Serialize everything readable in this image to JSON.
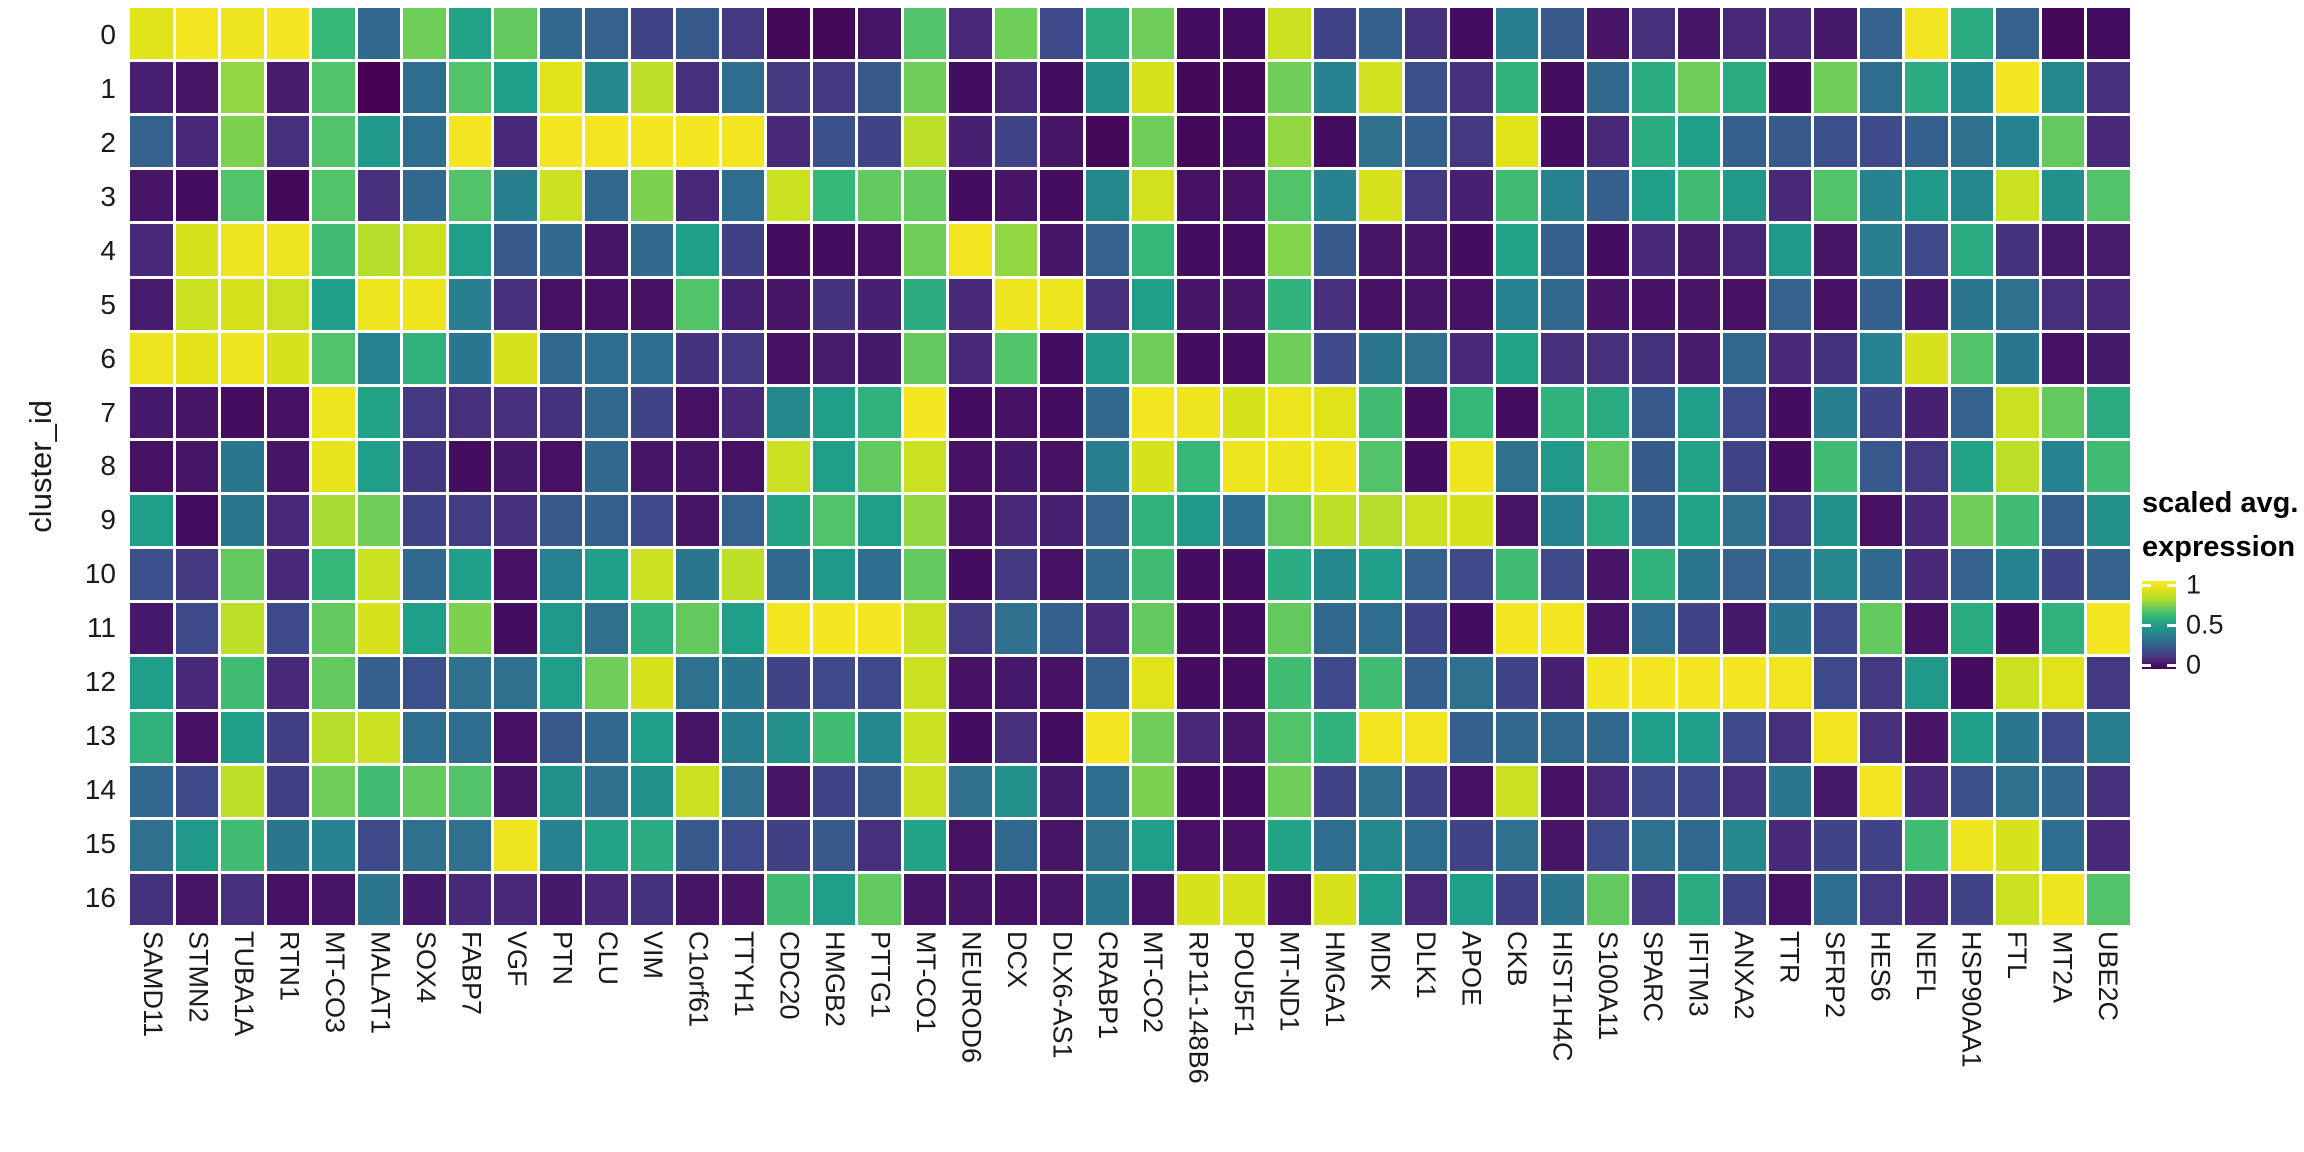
{
  "figure": {
    "background": "#ffffff",
    "grid_gap_color": "#ffffff"
  },
  "chart_data": {
    "type": "heatmap",
    "title": "",
    "xlabel": "",
    "ylabel": "cluster_id",
    "value_range": [
      0,
      1
    ],
    "colormap": "viridis",
    "viridis_stops": [
      "#440154",
      "#482878",
      "#3e4a89",
      "#31688e",
      "#26828e",
      "#1f9e89",
      "#35b779",
      "#6ece58",
      "#b5de2b",
      "#dfe318",
      "#fde725"
    ],
    "legend": {
      "title_line1": "scaled avg.",
      "title_line2": "expression",
      "tick_labels": [
        "1",
        "0.5",
        "0"
      ],
      "tick_values": [
        1,
        0.5,
        0
      ],
      "position": "right"
    },
    "rows": [
      "0",
      "1",
      "2",
      "3",
      "4",
      "5",
      "6",
      "7",
      "8",
      "9",
      "10",
      "11",
      "12",
      "13",
      "14",
      "15",
      "16"
    ],
    "columns": [
      "SAMD11",
      "STMN2",
      "TUBA1A",
      "RTN1",
      "MT-CO3",
      "MALAT1",
      "SOX4",
      "FABP7",
      "VGF",
      "PTN",
      "CLU",
      "VIM",
      "C1orf61",
      "TTYH1",
      "CDC20",
      "HMGB2",
      "PTTG1",
      "MT-CO1",
      "NEUROD6",
      "DCX",
      "DLX6-AS1",
      "CRABP1",
      "MT-CO2",
      "RP11-148B6",
      "POU5F1",
      "MT-ND1",
      "HMGA1",
      "MDK",
      "DLK1",
      "APOE",
      "CKB",
      "HIST1H4C",
      "S100A11",
      "SPARC",
      "IFITM3",
      "ANXA2",
      "TTR",
      "SFRP2",
      "HES6",
      "NEFL",
      "HSP90AA1",
      "FTL",
      "MT2A",
      "UBE2C"
    ],
    "values": [
      [
        0.9,
        0.97,
        0.95,
        0.97,
        0.6,
        0.3,
        0.7,
        0.52,
        0.68,
        0.3,
        0.28,
        0.18,
        0.25,
        0.15,
        0.02,
        0.02,
        0.05,
        0.65,
        0.1,
        0.7,
        0.2,
        0.55,
        0.7,
        0.03,
        0.03,
        0.85,
        0.18,
        0.27,
        0.13,
        0.03,
        0.38,
        0.25,
        0.05,
        0.12,
        0.05,
        0.1,
        0.1,
        0.06,
        0.28,
        0.97,
        0.55,
        0.28,
        0.02,
        0.03
      ],
      [
        0.08,
        0.05,
        0.75,
        0.07,
        0.65,
        0.0,
        0.32,
        0.65,
        0.5,
        0.9,
        0.42,
        0.82,
        0.12,
        0.32,
        0.15,
        0.15,
        0.25,
        0.7,
        0.03,
        0.1,
        0.03,
        0.45,
        0.88,
        0.02,
        0.02,
        0.7,
        0.4,
        0.87,
        0.22,
        0.12,
        0.58,
        0.03,
        0.3,
        0.55,
        0.7,
        0.55,
        0.03,
        0.7,
        0.32,
        0.55,
        0.42,
        0.97,
        0.42,
        0.12
      ],
      [
        0.28,
        0.1,
        0.72,
        0.12,
        0.65,
        0.48,
        0.32,
        0.97,
        0.1,
        0.97,
        0.97,
        0.97,
        0.97,
        0.96,
        0.1,
        0.22,
        0.18,
        0.82,
        0.08,
        0.18,
        0.05,
        0.02,
        0.7,
        0.02,
        0.03,
        0.75,
        0.03,
        0.33,
        0.27,
        0.15,
        0.9,
        0.03,
        0.1,
        0.55,
        0.5,
        0.27,
        0.25,
        0.22,
        0.2,
        0.27,
        0.33,
        0.4,
        0.68,
        0.1
      ],
      [
        0.05,
        0.03,
        0.65,
        0.02,
        0.65,
        0.12,
        0.3,
        0.65,
        0.38,
        0.85,
        0.3,
        0.72,
        0.1,
        0.32,
        0.85,
        0.6,
        0.68,
        0.68,
        0.03,
        0.05,
        0.03,
        0.42,
        0.87,
        0.04,
        0.04,
        0.65,
        0.4,
        0.88,
        0.15,
        0.08,
        0.62,
        0.4,
        0.27,
        0.5,
        0.62,
        0.48,
        0.1,
        0.65,
        0.4,
        0.48,
        0.42,
        0.85,
        0.45,
        0.65
      ],
      [
        0.1,
        0.88,
        0.95,
        0.95,
        0.62,
        0.8,
        0.85,
        0.5,
        0.25,
        0.3,
        0.05,
        0.3,
        0.5,
        0.17,
        0.03,
        0.03,
        0.04,
        0.7,
        0.96,
        0.75,
        0.05,
        0.28,
        0.6,
        0.03,
        0.03,
        0.73,
        0.25,
        0.05,
        0.05,
        0.03,
        0.52,
        0.27,
        0.03,
        0.1,
        0.07,
        0.09,
        0.48,
        0.05,
        0.38,
        0.2,
        0.55,
        0.13,
        0.06,
        0.07
      ],
      [
        0.07,
        0.85,
        0.88,
        0.85,
        0.5,
        0.95,
        0.95,
        0.38,
        0.12,
        0.04,
        0.04,
        0.04,
        0.65,
        0.08,
        0.05,
        0.13,
        0.08,
        0.55,
        0.1,
        0.95,
        0.95,
        0.12,
        0.5,
        0.05,
        0.05,
        0.58,
        0.12,
        0.04,
        0.05,
        0.04,
        0.4,
        0.3,
        0.05,
        0.04,
        0.05,
        0.04,
        0.28,
        0.04,
        0.27,
        0.06,
        0.35,
        0.33,
        0.12,
        0.1
      ],
      [
        0.95,
        0.92,
        0.95,
        0.88,
        0.65,
        0.4,
        0.58,
        0.35,
        0.88,
        0.3,
        0.32,
        0.32,
        0.13,
        0.15,
        0.04,
        0.07,
        0.06,
        0.68,
        0.1,
        0.65,
        0.03,
        0.48,
        0.7,
        0.03,
        0.03,
        0.7,
        0.2,
        0.35,
        0.33,
        0.1,
        0.52,
        0.12,
        0.12,
        0.13,
        0.07,
        0.3,
        0.1,
        0.13,
        0.4,
        0.88,
        0.65,
        0.35,
        0.04,
        0.06
      ],
      [
        0.06,
        0.05,
        0.03,
        0.04,
        0.95,
        0.52,
        0.15,
        0.12,
        0.12,
        0.13,
        0.3,
        0.18,
        0.04,
        0.1,
        0.42,
        0.5,
        0.58,
        0.97,
        0.03,
        0.04,
        0.03,
        0.3,
        0.97,
        0.95,
        0.88,
        0.95,
        0.9,
        0.62,
        0.03,
        0.6,
        0.03,
        0.58,
        0.55,
        0.25,
        0.5,
        0.2,
        0.03,
        0.38,
        0.18,
        0.08,
        0.28,
        0.85,
        0.68,
        0.55
      ],
      [
        0.04,
        0.05,
        0.35,
        0.05,
        0.93,
        0.5,
        0.14,
        0.03,
        0.06,
        0.04,
        0.3,
        0.05,
        0.05,
        0.04,
        0.85,
        0.5,
        0.68,
        0.85,
        0.04,
        0.06,
        0.04,
        0.38,
        0.88,
        0.6,
        0.95,
        0.95,
        0.95,
        0.65,
        0.03,
        0.95,
        0.33,
        0.48,
        0.68,
        0.26,
        0.52,
        0.18,
        0.03,
        0.62,
        0.25,
        0.15,
        0.52,
        0.82,
        0.4,
        0.62
      ],
      [
        0.5,
        0.03,
        0.35,
        0.1,
        0.78,
        0.7,
        0.18,
        0.16,
        0.12,
        0.25,
        0.27,
        0.2,
        0.05,
        0.28,
        0.52,
        0.65,
        0.5,
        0.75,
        0.04,
        0.1,
        0.08,
        0.28,
        0.58,
        0.48,
        0.32,
        0.68,
        0.82,
        0.8,
        0.85,
        0.88,
        0.05,
        0.4,
        0.55,
        0.27,
        0.52,
        0.33,
        0.15,
        0.45,
        0.04,
        0.1,
        0.7,
        0.62,
        0.27,
        0.45
      ],
      [
        0.22,
        0.15,
        0.68,
        0.1,
        0.6,
        0.85,
        0.3,
        0.5,
        0.04,
        0.4,
        0.5,
        0.85,
        0.35,
        0.82,
        0.3,
        0.48,
        0.32,
        0.68,
        0.03,
        0.15,
        0.04,
        0.3,
        0.62,
        0.03,
        0.03,
        0.55,
        0.42,
        0.5,
        0.28,
        0.2,
        0.62,
        0.2,
        0.05,
        0.58,
        0.35,
        0.28,
        0.3,
        0.42,
        0.3,
        0.1,
        0.28,
        0.4,
        0.18,
        0.28
      ],
      [
        0.06,
        0.2,
        0.82,
        0.2,
        0.68,
        0.88,
        0.5,
        0.72,
        0.03,
        0.48,
        0.33,
        0.58,
        0.68,
        0.5,
        0.97,
        0.97,
        0.97,
        0.85,
        0.15,
        0.33,
        0.27,
        0.1,
        0.68,
        0.03,
        0.03,
        0.68,
        0.3,
        0.32,
        0.18,
        0.03,
        0.97,
        0.97,
        0.05,
        0.32,
        0.18,
        0.06,
        0.35,
        0.2,
        0.68,
        0.04,
        0.55,
        0.03,
        0.58,
        0.97
      ],
      [
        0.5,
        0.1,
        0.62,
        0.1,
        0.68,
        0.27,
        0.22,
        0.33,
        0.33,
        0.5,
        0.7,
        0.88,
        0.33,
        0.35,
        0.18,
        0.2,
        0.2,
        0.85,
        0.04,
        0.06,
        0.04,
        0.27,
        0.9,
        0.03,
        0.03,
        0.62,
        0.2,
        0.62,
        0.27,
        0.33,
        0.18,
        0.08,
        0.97,
        0.97,
        0.97,
        0.97,
        0.96,
        0.2,
        0.15,
        0.48,
        0.03,
        0.85,
        0.9,
        0.15
      ],
      [
        0.58,
        0.04,
        0.5,
        0.17,
        0.8,
        0.85,
        0.32,
        0.32,
        0.04,
        0.25,
        0.3,
        0.5,
        0.05,
        0.38,
        0.45,
        0.62,
        0.42,
        0.85,
        0.03,
        0.12,
        0.03,
        0.97,
        0.7,
        0.1,
        0.05,
        0.65,
        0.58,
        0.97,
        0.96,
        0.27,
        0.3,
        0.3,
        0.3,
        0.5,
        0.5,
        0.2,
        0.12,
        0.96,
        0.12,
        0.05,
        0.5,
        0.35,
        0.2,
        0.38
      ],
      [
        0.3,
        0.2,
        0.82,
        0.17,
        0.7,
        0.62,
        0.68,
        0.65,
        0.05,
        0.45,
        0.33,
        0.45,
        0.85,
        0.33,
        0.05,
        0.18,
        0.25,
        0.85,
        0.33,
        0.45,
        0.06,
        0.32,
        0.72,
        0.03,
        0.03,
        0.7,
        0.18,
        0.33,
        0.17,
        0.04,
        0.85,
        0.04,
        0.1,
        0.2,
        0.2,
        0.12,
        0.35,
        0.06,
        0.96,
        0.1,
        0.22,
        0.33,
        0.3,
        0.12
      ],
      [
        0.33,
        0.48,
        0.62,
        0.35,
        0.4,
        0.2,
        0.33,
        0.33,
        0.95,
        0.4,
        0.52,
        0.55,
        0.25,
        0.2,
        0.17,
        0.25,
        0.12,
        0.52,
        0.04,
        0.3,
        0.05,
        0.33,
        0.5,
        0.04,
        0.04,
        0.52,
        0.32,
        0.42,
        0.32,
        0.18,
        0.33,
        0.05,
        0.2,
        0.33,
        0.3,
        0.42,
        0.1,
        0.18,
        0.18,
        0.62,
        0.95,
        0.88,
        0.32,
        0.1
      ],
      [
        0.13,
        0.05,
        0.12,
        0.04,
        0.05,
        0.35,
        0.06,
        0.1,
        0.1,
        0.06,
        0.1,
        0.13,
        0.05,
        0.05,
        0.62,
        0.5,
        0.68,
        0.05,
        0.05,
        0.04,
        0.05,
        0.35,
        0.04,
        0.88,
        0.88,
        0.04,
        0.88,
        0.5,
        0.1,
        0.5,
        0.17,
        0.35,
        0.68,
        0.15,
        0.55,
        0.18,
        0.04,
        0.32,
        0.15,
        0.1,
        0.18,
        0.85,
        0.95,
        0.65
      ]
    ]
  }
}
